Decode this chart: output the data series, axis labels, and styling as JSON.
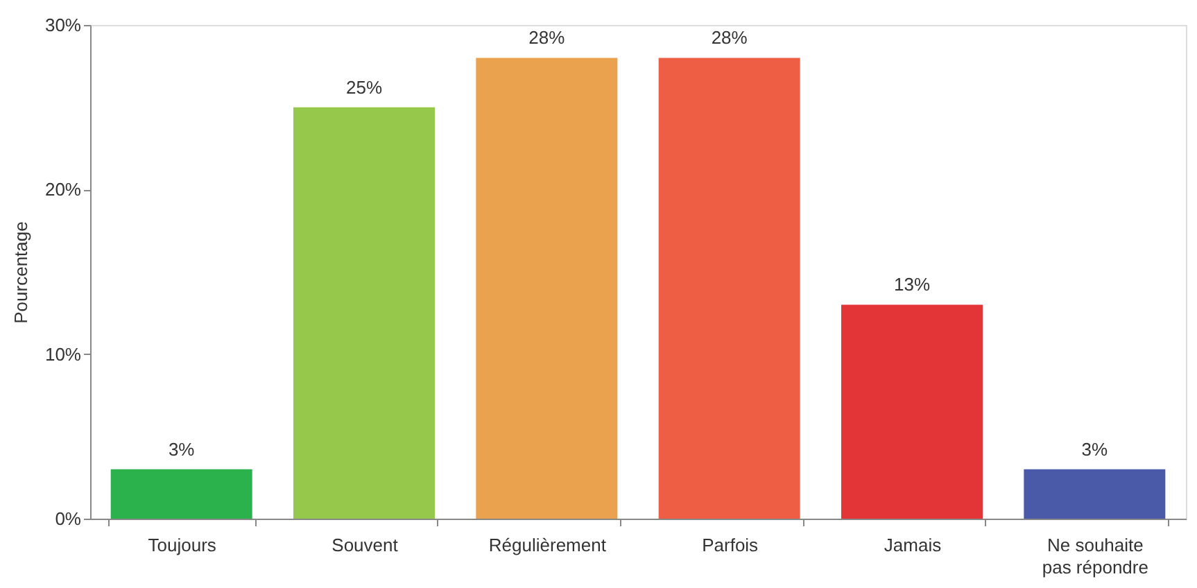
{
  "chart_data": {
    "type": "bar",
    "ylabel": "Pourcentage",
    "categories": [
      "Toujours",
      "Souvent",
      "Régulièrement",
      "Parfois",
      "Jamais",
      "Ne souhaite\npas répondre"
    ],
    "values": [
      3,
      25,
      28,
      28,
      13,
      3
    ],
    "colors": [
      "#2bb24c",
      "#96c94b",
      "#eba24e",
      "#ee5e45",
      "#e33437",
      "#4a5aa8"
    ],
    "value_labels": [
      "3%",
      "25%",
      "28%",
      "28%",
      "13%",
      "3%"
    ],
    "ylim": [
      0,
      30
    ],
    "yticks": [
      {
        "value": 0,
        "label": "0%"
      },
      {
        "value": 10,
        "label": "10%"
      },
      {
        "value": 20,
        "label": "20%"
      },
      {
        "value": 30,
        "label": "30%"
      }
    ],
    "grid": false,
    "legend": false
  }
}
